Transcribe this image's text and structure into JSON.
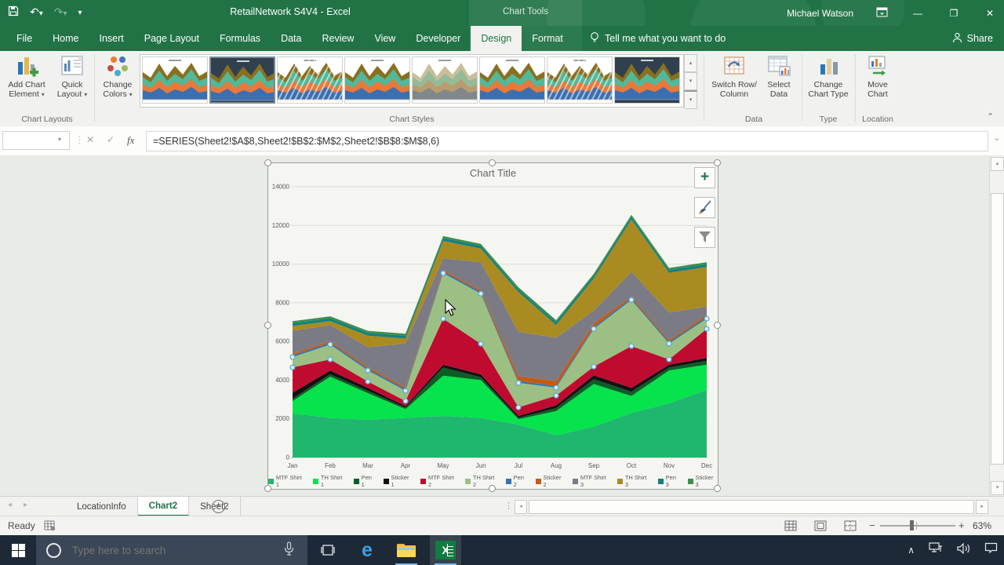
{
  "titlebar": {
    "title": "RetailNetwork S4V4 - Excel",
    "contextual_label": "Chart Tools",
    "user_name": "Michael Watson"
  },
  "ribbon_tabs": {
    "items": [
      "File",
      "Home",
      "Insert",
      "Page Layout",
      "Formulas",
      "Data",
      "Review",
      "View",
      "Developer",
      "Design",
      "Format"
    ],
    "active": "Design",
    "active_index": 9,
    "tell_me": "Tell me what you want to do",
    "share_label": "Share"
  },
  "ribbon": {
    "chart_layouts": {
      "group_label": "Chart Layouts",
      "add_chart_element": "Add Chart Element",
      "quick_layout": "Quick Layout"
    },
    "change_colors": "Change Colors",
    "chart_styles": {
      "group_label": "Chart Styles",
      "mini_palette": [
        "#3c6fb0",
        "#e8793a",
        "#52b89a",
        "#8a6f1f"
      ],
      "styles": [
        {
          "bg": "#ffffff"
        },
        {
          "bg": "#31404e",
          "dark": true,
          "selected": true
        },
        {
          "bg": "#ffffff",
          "hatch": true
        },
        {
          "bg": "#ffffff"
        },
        {
          "bg": "#ffffff",
          "pale": true
        },
        {
          "bg": "#ffffff"
        },
        {
          "bg": "#ffffff",
          "hatch": true
        },
        {
          "bg": "#31404e",
          "dark": true
        }
      ]
    },
    "data_group": {
      "group_label": "Data",
      "switch_row_column": "Switch Row/ Column",
      "select_data": "Select Data"
    },
    "type_group": {
      "group_label": "Type",
      "change_chart_type": "Change Chart Type"
    },
    "location_group": {
      "group_label": "Location",
      "move_chart": "Move Chart"
    }
  },
  "formula_bar": {
    "name_box_value": "",
    "formula": "=SERIES(Sheet2!$A$8,Sheet2!$B$2:$M$2,Sheet2!$B$8:$M$8,6)"
  },
  "chart_data": {
    "type": "area-stacked",
    "title": "Chart Title",
    "categories": [
      "Jan",
      "Feb",
      "Mar",
      "Apr",
      "May",
      "Jun",
      "Jul",
      "Aug",
      "Sep",
      "Oct",
      "Nov",
      "Dec"
    ],
    "ylim": [
      0,
      14000
    ],
    "ytick": 2000,
    "grid": true,
    "legend_position": "bottom",
    "selected_series": "TH Shirt 2",
    "selected_series_index": 5,
    "series": [
      {
        "name": "MTF Shirt 1",
        "color": "#1fb76e",
        "values": [
          2280,
          2050,
          1950,
          2050,
          2150,
          2050,
          1700,
          1150,
          1600,
          2300,
          2800,
          3500
        ]
      },
      {
        "name": "TH Shirt 1",
        "color": "#06e34c",
        "values": [
          640,
          2130,
          1380,
          450,
          2080,
          1950,
          280,
          1250,
          2200,
          880,
          1700,
          1300
        ]
      },
      {
        "name": "Pen 1",
        "color": "#0b5d26",
        "values": [
          130,
          120,
          120,
          80,
          420,
          150,
          70,
          150,
          250,
          220,
          150,
          200
        ]
      },
      {
        "name": "Sticker 1",
        "color": "#121212",
        "values": [
          300,
          200,
          150,
          80,
          150,
          150,
          100,
          150,
          200,
          200,
          150,
          150
        ]
      },
      {
        "name": "MTF Shirt 2",
        "color": "#c00b30",
        "values": [
          1310,
          570,
          330,
          260,
          2380,
          1580,
          440,
          500,
          450,
          2160,
          270,
          1500
        ]
      },
      {
        "name": "TH Shirt 2",
        "color": "#9cc083",
        "values": [
          530,
          770,
          570,
          530,
          2350,
          2590,
          1270,
          410,
          1950,
          2390,
          820,
          530
        ]
      },
      {
        "name": "Pen 2",
        "color": "#2e75b6",
        "values": [
          90,
          90,
          90,
          90,
          90,
          90,
          90,
          90,
          90,
          90,
          90,
          90
        ]
      },
      {
        "name": "Sticker 2",
        "color": "#c55a11",
        "values": [
          90,
          90,
          90,
          90,
          90,
          90,
          250,
          250,
          200,
          90,
          90,
          110
        ]
      },
      {
        "name": "MTF Shirt 3",
        "color": "#7b7b85",
        "values": [
          1180,
          830,
          1020,
          2270,
          590,
          1450,
          2300,
          2250,
          660,
          1270,
          1430,
          420
        ]
      },
      {
        "name": "TH Shirt 3",
        "color": "#a98b21",
        "values": [
          250,
          200,
          600,
          250,
          900,
          700,
          2050,
          650,
          1650,
          2700,
          2050,
          2050
        ]
      },
      {
        "name": "Pen 3",
        "color": "#17807e",
        "values": [
          150,
          150,
          150,
          150,
          150,
          150,
          150,
          150,
          150,
          150,
          150,
          150
        ]
      },
      {
        "name": "Sticker 3",
        "color": "#3e8e49",
        "values": [
          100,
          100,
          100,
          100,
          100,
          100,
          100,
          100,
          100,
          100,
          100,
          100
        ]
      }
    ],
    "marker_fill": "#d9edf8",
    "marker_stroke": "#53a7d8"
  },
  "sheet_bar": {
    "tabs": [
      "LocationInfo",
      "Chart2",
      "Sheet2"
    ],
    "active": "Chart2"
  },
  "status_bar": {
    "mode": "Ready",
    "zoom_percent": "63%"
  },
  "taskbar": {
    "search_placeholder": "Type here to search"
  },
  "icons": {
    "undo": "↶",
    "redo": "↷",
    "dropdown": "▾",
    "qat_caret": "▾",
    "minimize": "—",
    "restore": "❐",
    "close": "✕",
    "cancel": "✕",
    "enter": "✓",
    "function": "fx",
    "expand_formula_bar": "⌄",
    "collapse_ribbon": "⌃",
    "scroll_left": "◂",
    "scroll_right": "▸",
    "scroll_up": "▴",
    "scroll_down": "▾",
    "more_styles": "▾",
    "add_sheet": "+",
    "dots": "⋮",
    "zoom_minus": "−",
    "zoom_plus": "+",
    "tray_chevron": "∧",
    "chart_plus": "+"
  },
  "colors": {
    "excel_green": "#217346",
    "ribbon_bg": "#f1f1ef",
    "worksheet_bg": "#e9ebe7",
    "taskbar_bg": "#1d2936"
  }
}
